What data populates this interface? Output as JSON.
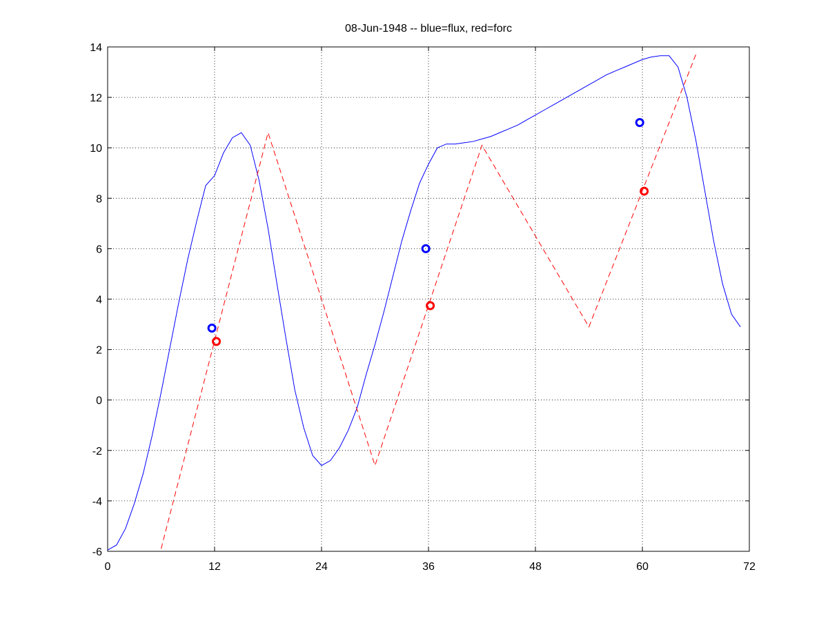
{
  "chart_data": {
    "type": "line",
    "title": "08-Jun-1948 -- blue=flux, red=forc",
    "xlim": [
      0,
      72
    ],
    "ylim": [
      -6,
      14
    ],
    "xticks": [
      0,
      12,
      24,
      36,
      48,
      60,
      72
    ],
    "yticks": [
      -6,
      -4,
      -2,
      0,
      2,
      4,
      6,
      8,
      10,
      12,
      14
    ],
    "grid": true,
    "series": [
      {
        "type": "line",
        "color": "#0000ff",
        "linestyle": "solid",
        "x": [
          0,
          1,
          2,
          3,
          4,
          5,
          6,
          7,
          8,
          9,
          10,
          11,
          12,
          13,
          14,
          15,
          16,
          17,
          18,
          19,
          20,
          21,
          22,
          23,
          24,
          25,
          26,
          27,
          28,
          29,
          30,
          31,
          32,
          33,
          34,
          35,
          36,
          37,
          38,
          39,
          40,
          41,
          42,
          43,
          44,
          45,
          46,
          47,
          48,
          49,
          50,
          51,
          52,
          53,
          54,
          55,
          56,
          57,
          58,
          59,
          60,
          61,
          62,
          63,
          64,
          65,
          66,
          67,
          68,
          69,
          70,
          71
        ],
        "values": [
          -5.95,
          -5.75,
          -5.1,
          -4.1,
          -2.9,
          -1.4,
          0.3,
          2.1,
          3.9,
          5.6,
          7.1,
          8.5,
          8.9,
          9.8,
          10.4,
          10.6,
          10.1,
          8.7,
          6.8,
          4.6,
          2.45,
          0.4,
          -1.1,
          -2.2,
          -2.6,
          -2.4,
          -1.9,
          -1.2,
          -0.3,
          1.0,
          2.2,
          3.5,
          4.9,
          6.3,
          7.5,
          8.6,
          9.35,
          10.0,
          10.15,
          10.15,
          10.2,
          10.25,
          10.35,
          10.45,
          10.6,
          10.75,
          10.9,
          11.1,
          11.3,
          11.5,
          11.7,
          11.9,
          12.1,
          12.3,
          12.5,
          12.7,
          12.9,
          13.05,
          13.2,
          13.35,
          13.5,
          13.6,
          13.65,
          13.65,
          13.2,
          12.0,
          10.3,
          8.3,
          6.3,
          4.6,
          3.4,
          2.9
        ]
      },
      {
        "type": "line",
        "color": "#ff0000",
        "linestyle": "dashed",
        "x": [
          6,
          18,
          30,
          42,
          54,
          66
        ],
        "values": [
          -5.9,
          10.6,
          -2.6,
          10.1,
          2.9,
          13.7
        ]
      },
      {
        "type": "scatter",
        "color": "#0000ff",
        "x": [
          11.7,
          35.7,
          59.7
        ],
        "values": [
          2.85,
          6.0,
          11.0
        ]
      },
      {
        "type": "scatter",
        "color": "#ff0000",
        "x": [
          12.2,
          36.2,
          60.2
        ],
        "values": [
          2.32,
          3.74,
          8.28
        ]
      }
    ]
  }
}
